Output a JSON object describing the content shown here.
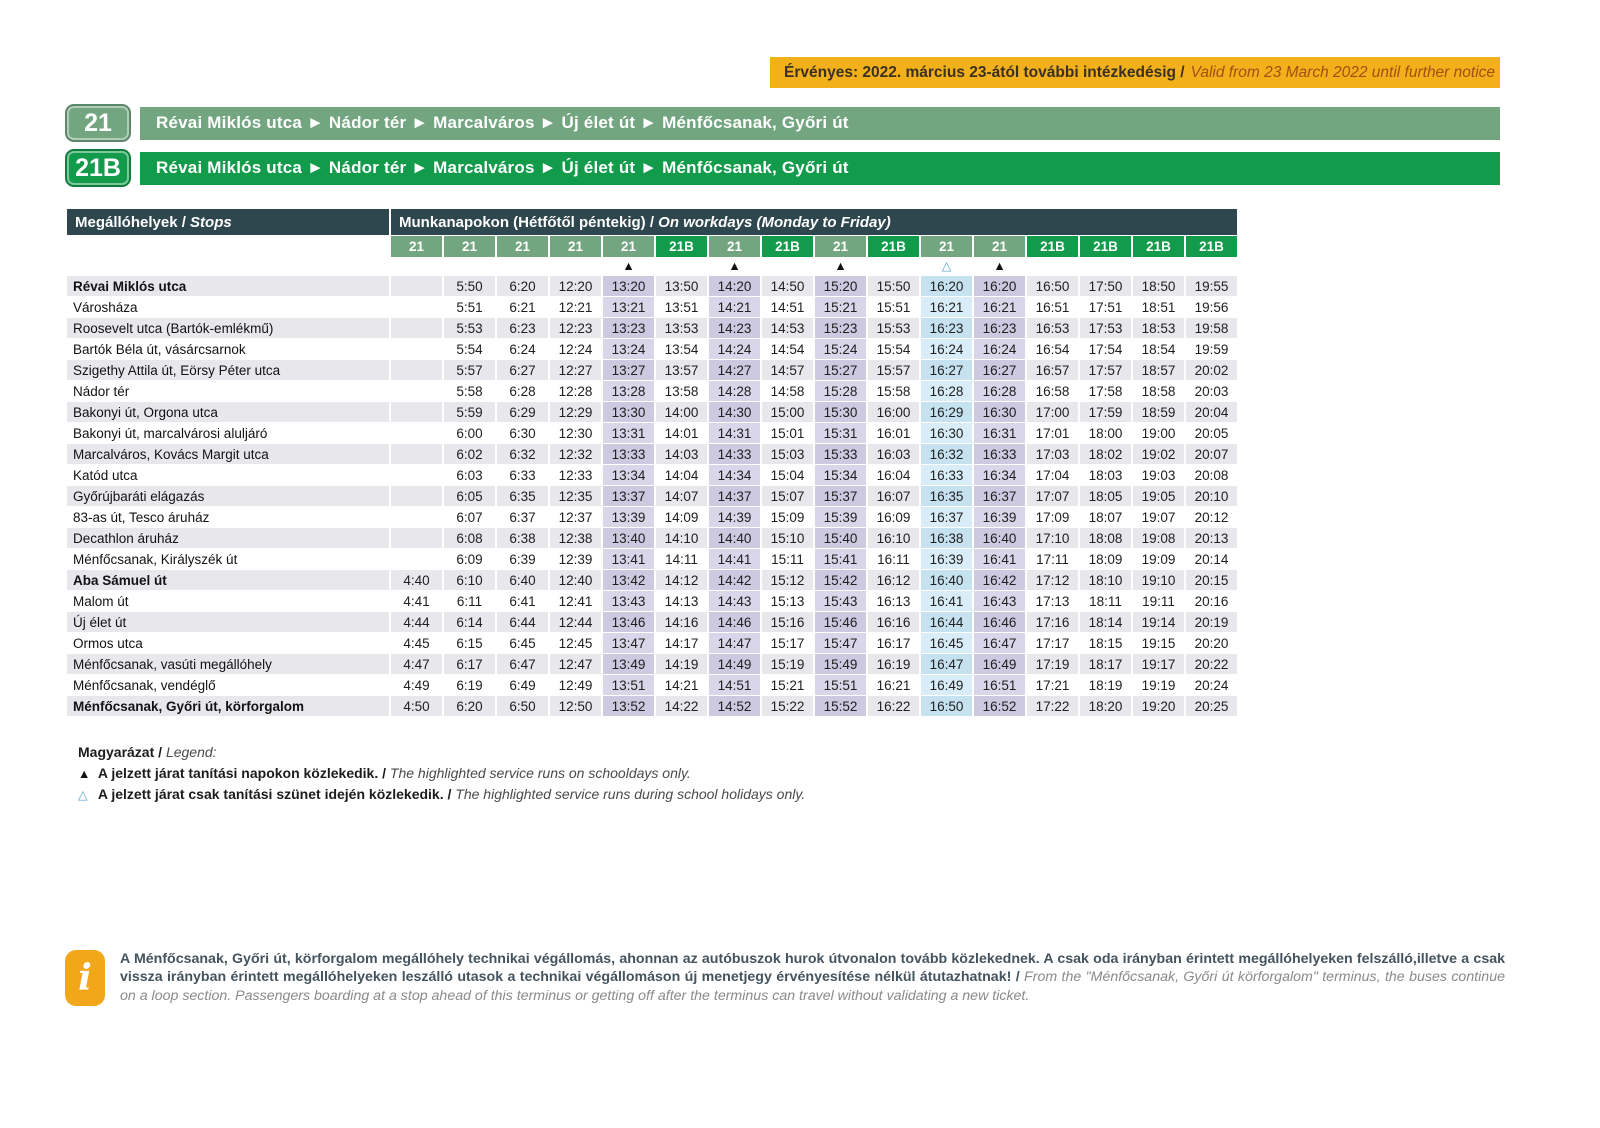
{
  "banner": {
    "hu": "Érvényes: 2022. március 23-ától további intézkedésig /",
    "en": "Valid from 23 March 2022 until further notice"
  },
  "routes": [
    {
      "number": "21",
      "description": "Révai Miklós utca ► Nádor tér ► Marcalváros ► Új élet út ► Ménfőcsanak, Győri út"
    },
    {
      "number": "21B",
      "description": "Révai Miklós utca ► Nádor tér ► Marcalváros ► Új élet út ► Ménfőcsanak, Győri út"
    }
  ],
  "table": {
    "stops_header": {
      "hu": "Megállóhelyek /",
      "en": "Stops"
    },
    "days_header": {
      "hu": "Munkanapokon (Hétfőtől péntekig) /",
      "en": "On workdays (Monday to Friday)"
    },
    "columns": [
      {
        "route": "21",
        "symbol": ""
      },
      {
        "route": "21",
        "symbol": ""
      },
      {
        "route": "21",
        "symbol": ""
      },
      {
        "route": "21",
        "symbol": ""
      },
      {
        "route": "21",
        "symbol": "schoolday"
      },
      {
        "route": "21B",
        "symbol": ""
      },
      {
        "route": "21",
        "symbol": "schoolday"
      },
      {
        "route": "21B",
        "symbol": ""
      },
      {
        "route": "21",
        "symbol": "schoolday"
      },
      {
        "route": "21B",
        "symbol": ""
      },
      {
        "route": "21",
        "symbol": "holiday"
      },
      {
        "route": "21",
        "symbol": "schoolday"
      },
      {
        "route": "21B",
        "symbol": ""
      },
      {
        "route": "21B",
        "symbol": ""
      },
      {
        "route": "21B",
        "symbol": ""
      },
      {
        "route": "21B",
        "symbol": ""
      }
    ],
    "rows": [
      {
        "stop": "Révai Miklós utca",
        "bold": true,
        "times": [
          "",
          "5:50",
          "6:20",
          "12:20",
          "13:20",
          "13:50",
          "14:20",
          "14:50",
          "15:20",
          "15:50",
          "16:20",
          "16:20",
          "16:50",
          "17:50",
          "18:50",
          "19:55"
        ]
      },
      {
        "stop": "Városháza",
        "bold": false,
        "times": [
          "",
          "5:51",
          "6:21",
          "12:21",
          "13:21",
          "13:51",
          "14:21",
          "14:51",
          "15:21",
          "15:51",
          "16:21",
          "16:21",
          "16:51",
          "17:51",
          "18:51",
          "19:56"
        ]
      },
      {
        "stop": "Roosevelt utca (Bartók-emlékmű)",
        "bold": false,
        "times": [
          "",
          "5:53",
          "6:23",
          "12:23",
          "13:23",
          "13:53",
          "14:23",
          "14:53",
          "15:23",
          "15:53",
          "16:23",
          "16:23",
          "16:53",
          "17:53",
          "18:53",
          "19:58"
        ]
      },
      {
        "stop": "Bartók Béla út, vásárcsarnok",
        "bold": false,
        "times": [
          "",
          "5:54",
          "6:24",
          "12:24",
          "13:24",
          "13:54",
          "14:24",
          "14:54",
          "15:24",
          "15:54",
          "16:24",
          "16:24",
          "16:54",
          "17:54",
          "18:54",
          "19:59"
        ]
      },
      {
        "stop": "Szigethy Attila út, Eörsy Péter utca",
        "bold": false,
        "times": [
          "",
          "5:57",
          "6:27",
          "12:27",
          "13:27",
          "13:57",
          "14:27",
          "14:57",
          "15:27",
          "15:57",
          "16:27",
          "16:27",
          "16:57",
          "17:57",
          "18:57",
          "20:02"
        ]
      },
      {
        "stop": "Nádor tér",
        "bold": false,
        "times": [
          "",
          "5:58",
          "6:28",
          "12:28",
          "13:28",
          "13:58",
          "14:28",
          "14:58",
          "15:28",
          "15:58",
          "16:28",
          "16:28",
          "16:58",
          "17:58",
          "18:58",
          "20:03"
        ]
      },
      {
        "stop": "Bakonyi út, Orgona utca",
        "bold": false,
        "times": [
          "",
          "5:59",
          "6:29",
          "12:29",
          "13:30",
          "14:00",
          "14:30",
          "15:00",
          "15:30",
          "16:00",
          "16:29",
          "16:30",
          "17:00",
          "17:59",
          "18:59",
          "20:04"
        ]
      },
      {
        "stop": "Bakonyi út, marcalvárosi aluljáró",
        "bold": false,
        "times": [
          "",
          "6:00",
          "6:30",
          "12:30",
          "13:31",
          "14:01",
          "14:31",
          "15:01",
          "15:31",
          "16:01",
          "16:30",
          "16:31",
          "17:01",
          "18:00",
          "19:00",
          "20:05"
        ]
      },
      {
        "stop": "Marcalváros, Kovács Margit utca",
        "bold": false,
        "times": [
          "",
          "6:02",
          "6:32",
          "12:32",
          "13:33",
          "14:03",
          "14:33",
          "15:03",
          "15:33",
          "16:03",
          "16:32",
          "16:33",
          "17:03",
          "18:02",
          "19:02",
          "20:07"
        ]
      },
      {
        "stop": "Katód utca",
        "bold": false,
        "times": [
          "",
          "6:03",
          "6:33",
          "12:33",
          "13:34",
          "14:04",
          "14:34",
          "15:04",
          "15:34",
          "16:04",
          "16:33",
          "16:34",
          "17:04",
          "18:03",
          "19:03",
          "20:08"
        ]
      },
      {
        "stop": "Győrújbaráti elágazás",
        "bold": false,
        "times": [
          "",
          "6:05",
          "6:35",
          "12:35",
          "13:37",
          "14:07",
          "14:37",
          "15:07",
          "15:37",
          "16:07",
          "16:35",
          "16:37",
          "17:07",
          "18:05",
          "19:05",
          "20:10"
        ]
      },
      {
        "stop": "83-as út, Tesco áruház",
        "bold": false,
        "times": [
          "",
          "6:07",
          "6:37",
          "12:37",
          "13:39",
          "14:09",
          "14:39",
          "15:09",
          "15:39",
          "16:09",
          "16:37",
          "16:39",
          "17:09",
          "18:07",
          "19:07",
          "20:12"
        ]
      },
      {
        "stop": "Decathlon áruház",
        "bold": false,
        "times": [
          "",
          "6:08",
          "6:38",
          "12:38",
          "13:40",
          "14:10",
          "14:40",
          "15:10",
          "15:40",
          "16:10",
          "16:38",
          "16:40",
          "17:10",
          "18:08",
          "19:08",
          "20:13"
        ]
      },
      {
        "stop": "Ménfőcsanak, Királyszék út",
        "bold": false,
        "times": [
          "",
          "6:09",
          "6:39",
          "12:39",
          "13:41",
          "14:11",
          "14:41",
          "15:11",
          "15:41",
          "16:11",
          "16:39",
          "16:41",
          "17:11",
          "18:09",
          "19:09",
          "20:14"
        ]
      },
      {
        "stop": "Aba Sámuel út",
        "bold": true,
        "times": [
          "4:40",
          "6:10",
          "6:40",
          "12:40",
          "13:42",
          "14:12",
          "14:42",
          "15:12",
          "15:42",
          "16:12",
          "16:40",
          "16:42",
          "17:12",
          "18:10",
          "19:10",
          "20:15"
        ]
      },
      {
        "stop": "Malom út",
        "bold": false,
        "times": [
          "4:41",
          "6:11",
          "6:41",
          "12:41",
          "13:43",
          "14:13",
          "14:43",
          "15:13",
          "15:43",
          "16:13",
          "16:41",
          "16:43",
          "17:13",
          "18:11",
          "19:11",
          "20:16"
        ]
      },
      {
        "stop": "Új élet út",
        "bold": false,
        "times": [
          "4:44",
          "6:14",
          "6:44",
          "12:44",
          "13:46",
          "14:16",
          "14:46",
          "15:16",
          "15:46",
          "16:16",
          "16:44",
          "16:46",
          "17:16",
          "18:14",
          "19:14",
          "20:19"
        ]
      },
      {
        "stop": "Ormos utca",
        "bold": false,
        "times": [
          "4:45",
          "6:15",
          "6:45",
          "12:45",
          "13:47",
          "14:17",
          "14:47",
          "15:17",
          "15:47",
          "16:17",
          "16:45",
          "16:47",
          "17:17",
          "18:15",
          "19:15",
          "20:20"
        ]
      },
      {
        "stop": "Ménfőcsanak, vasúti megállóhely",
        "bold": false,
        "times": [
          "4:47",
          "6:17",
          "6:47",
          "12:47",
          "13:49",
          "14:19",
          "14:49",
          "15:19",
          "15:49",
          "16:19",
          "16:47",
          "16:49",
          "17:19",
          "18:17",
          "19:17",
          "20:22"
        ]
      },
      {
        "stop": "Ménfőcsanak, vendéglő",
        "bold": false,
        "times": [
          "4:49",
          "6:19",
          "6:49",
          "12:49",
          "13:51",
          "14:21",
          "14:51",
          "15:21",
          "15:51",
          "16:21",
          "16:49",
          "16:51",
          "17:21",
          "18:19",
          "19:19",
          "20:24"
        ]
      },
      {
        "stop": "Ménfőcsanak, Győri út, körforgalom",
        "bold": true,
        "times": [
          "4:50",
          "6:20",
          "6:50",
          "12:50",
          "13:52",
          "14:22",
          "14:52",
          "15:22",
          "15:52",
          "16:22",
          "16:50",
          "16:52",
          "17:22",
          "18:20",
          "19:20",
          "20:25"
        ]
      }
    ]
  },
  "legend": {
    "title_hu": "Magyarázat /",
    "title_en": "Legend:",
    "schoolday_symbol": "▲",
    "schoolday_hu": "A jelzett járat tanítási napokon közlekedik. /",
    "schoolday_en": "The highlighted service runs on schooldays only.",
    "holiday_symbol": "△",
    "holiday_hu": "A jelzett járat csak tanítási szünet idején közlekedik. /",
    "holiday_en": "The highlighted service runs during school holidays only."
  },
  "info": {
    "icon": "i",
    "hu": "A Ménfőcsanak, Győri út, körforgalom megállóhely technikai végállomás, ahonnan az autóbuszok hurok útvonalon tovább közlekednek. A csak oda irányban érintett megállóhelyeken felszálló,illetve a csak vissza irányban érintett megállóhelyeken leszálló utasok a technikai végállomáson új menetjegy érvényesítése nélkül átutazhatnak! /",
    "en": "From the \"Ménfőcsanak, Győri út körforgalom\" terminus, the buses continue on a loop section. Passengers boarding at a stop ahead of this terminus or getting off after the terminus can travel without validating a new ticket."
  },
  "colors": {
    "route21": "#72a580",
    "route21b": "#119b4b",
    "header_slate": "#2e464e",
    "banner_yellow": "#f2b01b",
    "schoolday_highlight": "#d9d6ea",
    "holiday_highlight": "#d9edf8",
    "zebra": "#e8e8ec"
  }
}
